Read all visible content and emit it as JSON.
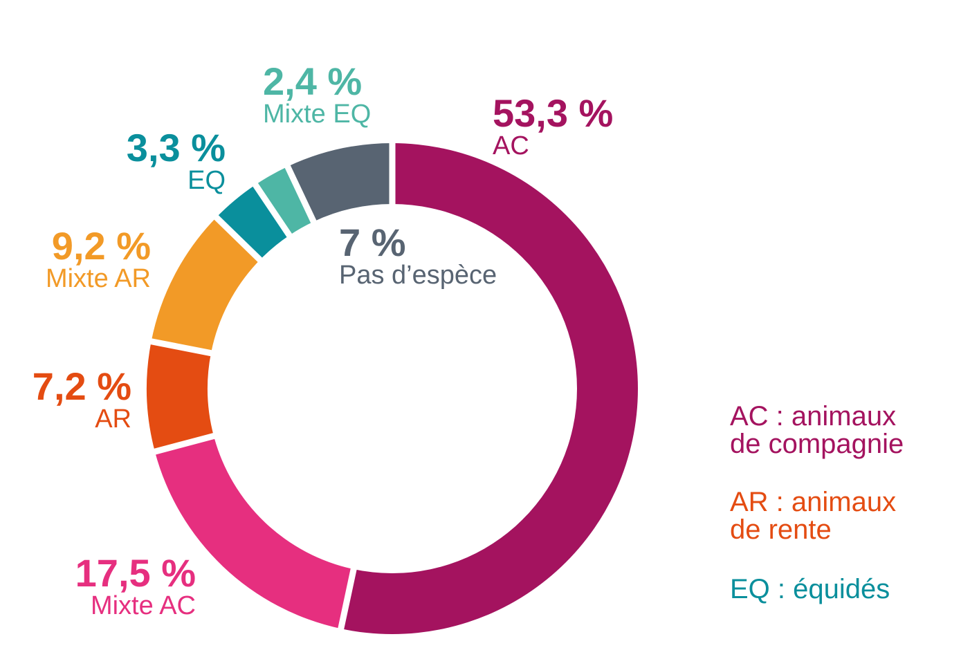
{
  "chart_data": {
    "type": "pie",
    "variant": "donut",
    "title": "",
    "slices": [
      {
        "label": "AC",
        "value": 53.3,
        "value_label": "53,3 %",
        "color": "#a4135f"
      },
      {
        "label": "Mixte AC",
        "value": 17.5,
        "value_label": "17,5 %",
        "color": "#e62f7f"
      },
      {
        "label": "AR",
        "value": 7.2,
        "value_label": "7,2 %",
        "color": "#e44c12"
      },
      {
        "label": "Mixte AR",
        "value": 9.2,
        "value_label": "9,2 %",
        "color": "#f29a27"
      },
      {
        "label": "EQ",
        "value": 3.3,
        "value_label": "3,3 %",
        "color": "#0a8f9c"
      },
      {
        "label": "Mixte EQ",
        "value": 2.4,
        "value_label": "2,4 %",
        "color": "#4eb6a5"
      },
      {
        "label": "Pas d’espèce",
        "value": 7,
        "value_label": "7 %",
        "color": "#586472"
      }
    ],
    "start": "top",
    "direction": "clockwise",
    "legend_placement": "bottom-right"
  },
  "legend": [
    {
      "line1": "AC : animaux",
      "line2": "de compagnie",
      "color": "#a4135f"
    },
    {
      "line1": "AR : animaux",
      "line2": "de rente",
      "color": "#e44c12"
    },
    {
      "line1": "EQ : équidés",
      "line2": "",
      "color": "#0a8f9c"
    }
  ]
}
